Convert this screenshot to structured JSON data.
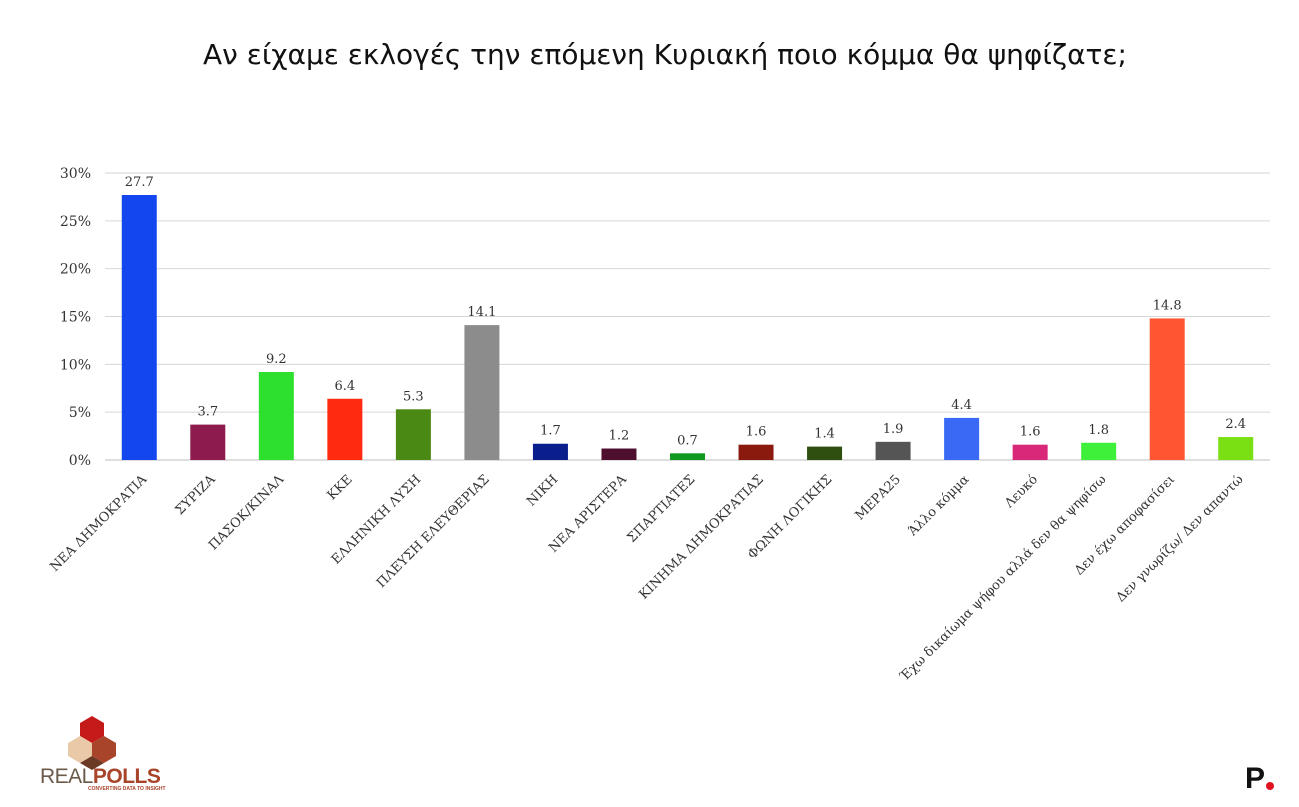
{
  "title": "Αν είχαμε εκλογές την επόμενη Κυριακή ποιο κόμμα θα ψηφίζατε;",
  "brand": {
    "logo_text_light": "REAL",
    "logo_text_bold": "POLLS",
    "logo_tagline": "CONVERTING DATA TO INSIGHT",
    "corner_mark": "P",
    "corner_dot_color": "#e0121f"
  },
  "chart_data": {
    "type": "bar",
    "ylim": [
      0,
      30
    ],
    "yticks": [
      "0%",
      "5%",
      "10%",
      "15%",
      "20%",
      "25%",
      "30%"
    ],
    "grid": true,
    "categories": [
      "ΝΕΑ ΔΗΜΟΚΡΑΤΙΑ",
      "ΣΥΡΙΖΑ",
      "ΠΑΣΟΚ/ΚΙΝΑΛ",
      "ΚΚΕ",
      "ΕΛΛΗΝΙΚΗ ΛΥΣΗ",
      "ΠΛΕΥΣΗ ΕΛΕΥΘΕΡΙΑΣ",
      "ΝΙΚΗ",
      "ΝΕΑ ΑΡΙΣΤΕΡΑ",
      "ΣΠΑΡΤΙΑΤΕΣ",
      "ΚΙΝΗΜΑ ΔΗΜΟΚΡΑΤΙΑΣ",
      "ΦΩΝΗ ΛΟΓΙΚΗΣ",
      "ΜΕΡΑ25",
      "Άλλο κόμμα",
      "Λευκό",
      "Έχω δικαίωμα ψήφου αλλά δεν θα ψηφίσω",
      "Δεν έχω αποφασίσει",
      "Δεν γνωρίζω/ Δεν απαντώ"
    ],
    "values": [
      27.7,
      3.7,
      9.2,
      6.4,
      5.3,
      14.1,
      1.7,
      1.2,
      0.7,
      1.6,
      1.4,
      1.9,
      4.4,
      1.6,
      1.8,
      14.8,
      2.4
    ],
    "value_labels": [
      "27.7",
      "3.7",
      "9.2",
      "6.4",
      "5.3",
      "14.1",
      "1.7",
      "1.2",
      "0.7",
      "1.6",
      "1.4",
      "1.9",
      "4.4",
      "1.6",
      "1.8",
      "14.8",
      "2.4"
    ],
    "colors": [
      "#1446f0",
      "#8e1b4e",
      "#2ee02e",
      "#ff2a0f",
      "#4a8a14",
      "#8c8c8c",
      "#0a1f8c",
      "#4e0f2e",
      "#0f9a1f",
      "#8a1a0e",
      "#2e4f10",
      "#555555",
      "#3a6af5",
      "#d9287a",
      "#3ef03a",
      "#ff5533",
      "#7ae014"
    ]
  }
}
